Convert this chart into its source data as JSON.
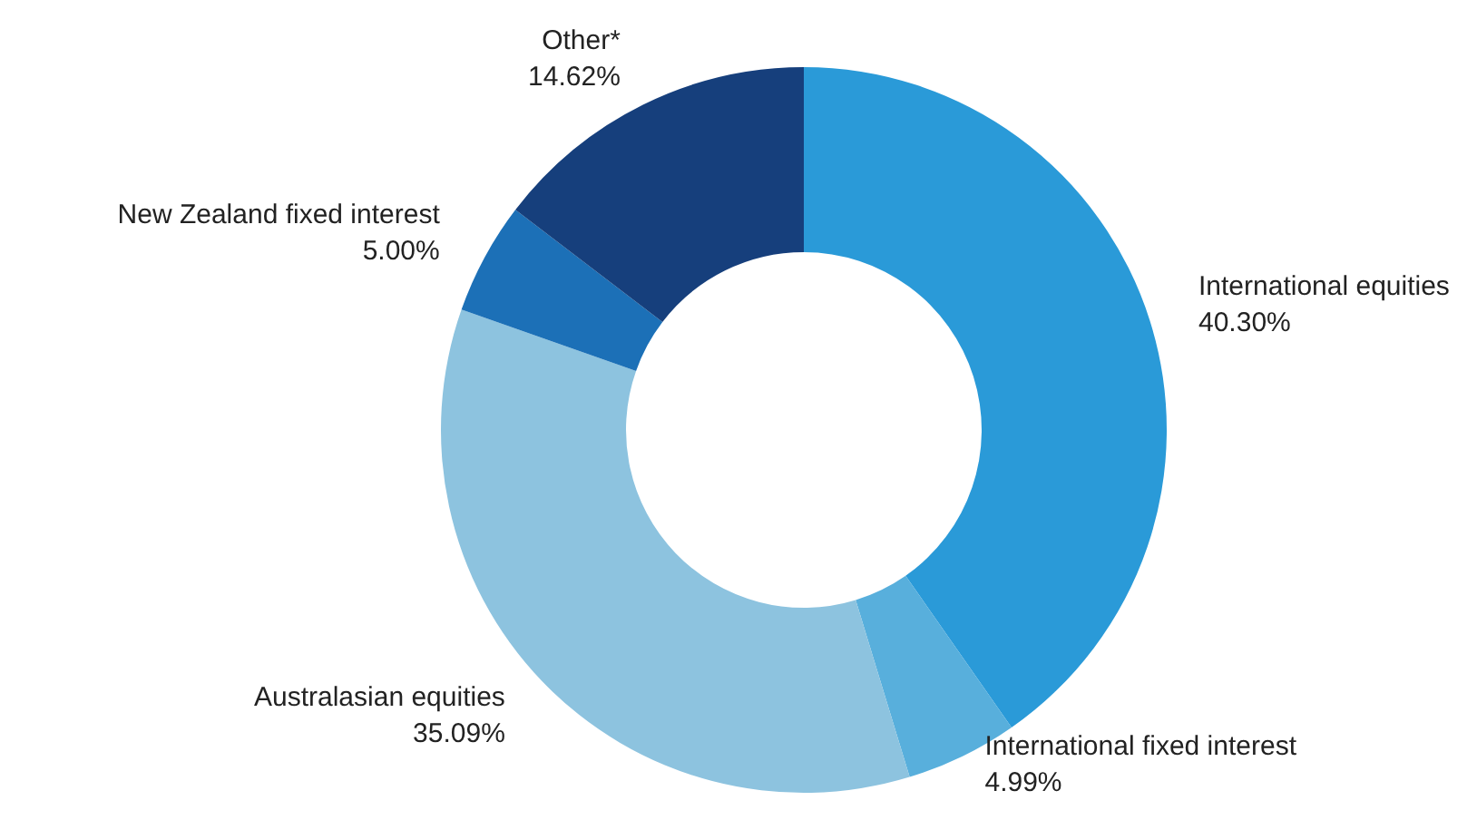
{
  "chart_data": {
    "type": "donut",
    "categories": [
      "International equities",
      "International fixed interest",
      "Australasian equities",
      "New Zealand fixed interest",
      "Other*"
    ],
    "values": [
      40.3,
      4.99,
      35.09,
      5.0,
      14.62
    ],
    "value_labels": [
      "40.30%",
      "4.99%",
      "35.09%",
      "5.00%",
      "14.62%"
    ],
    "colors": [
      "#2a9ad8",
      "#58afdc",
      "#8dc3df",
      "#1c70b7",
      "#163f7c"
    ],
    "legend": false
  }
}
